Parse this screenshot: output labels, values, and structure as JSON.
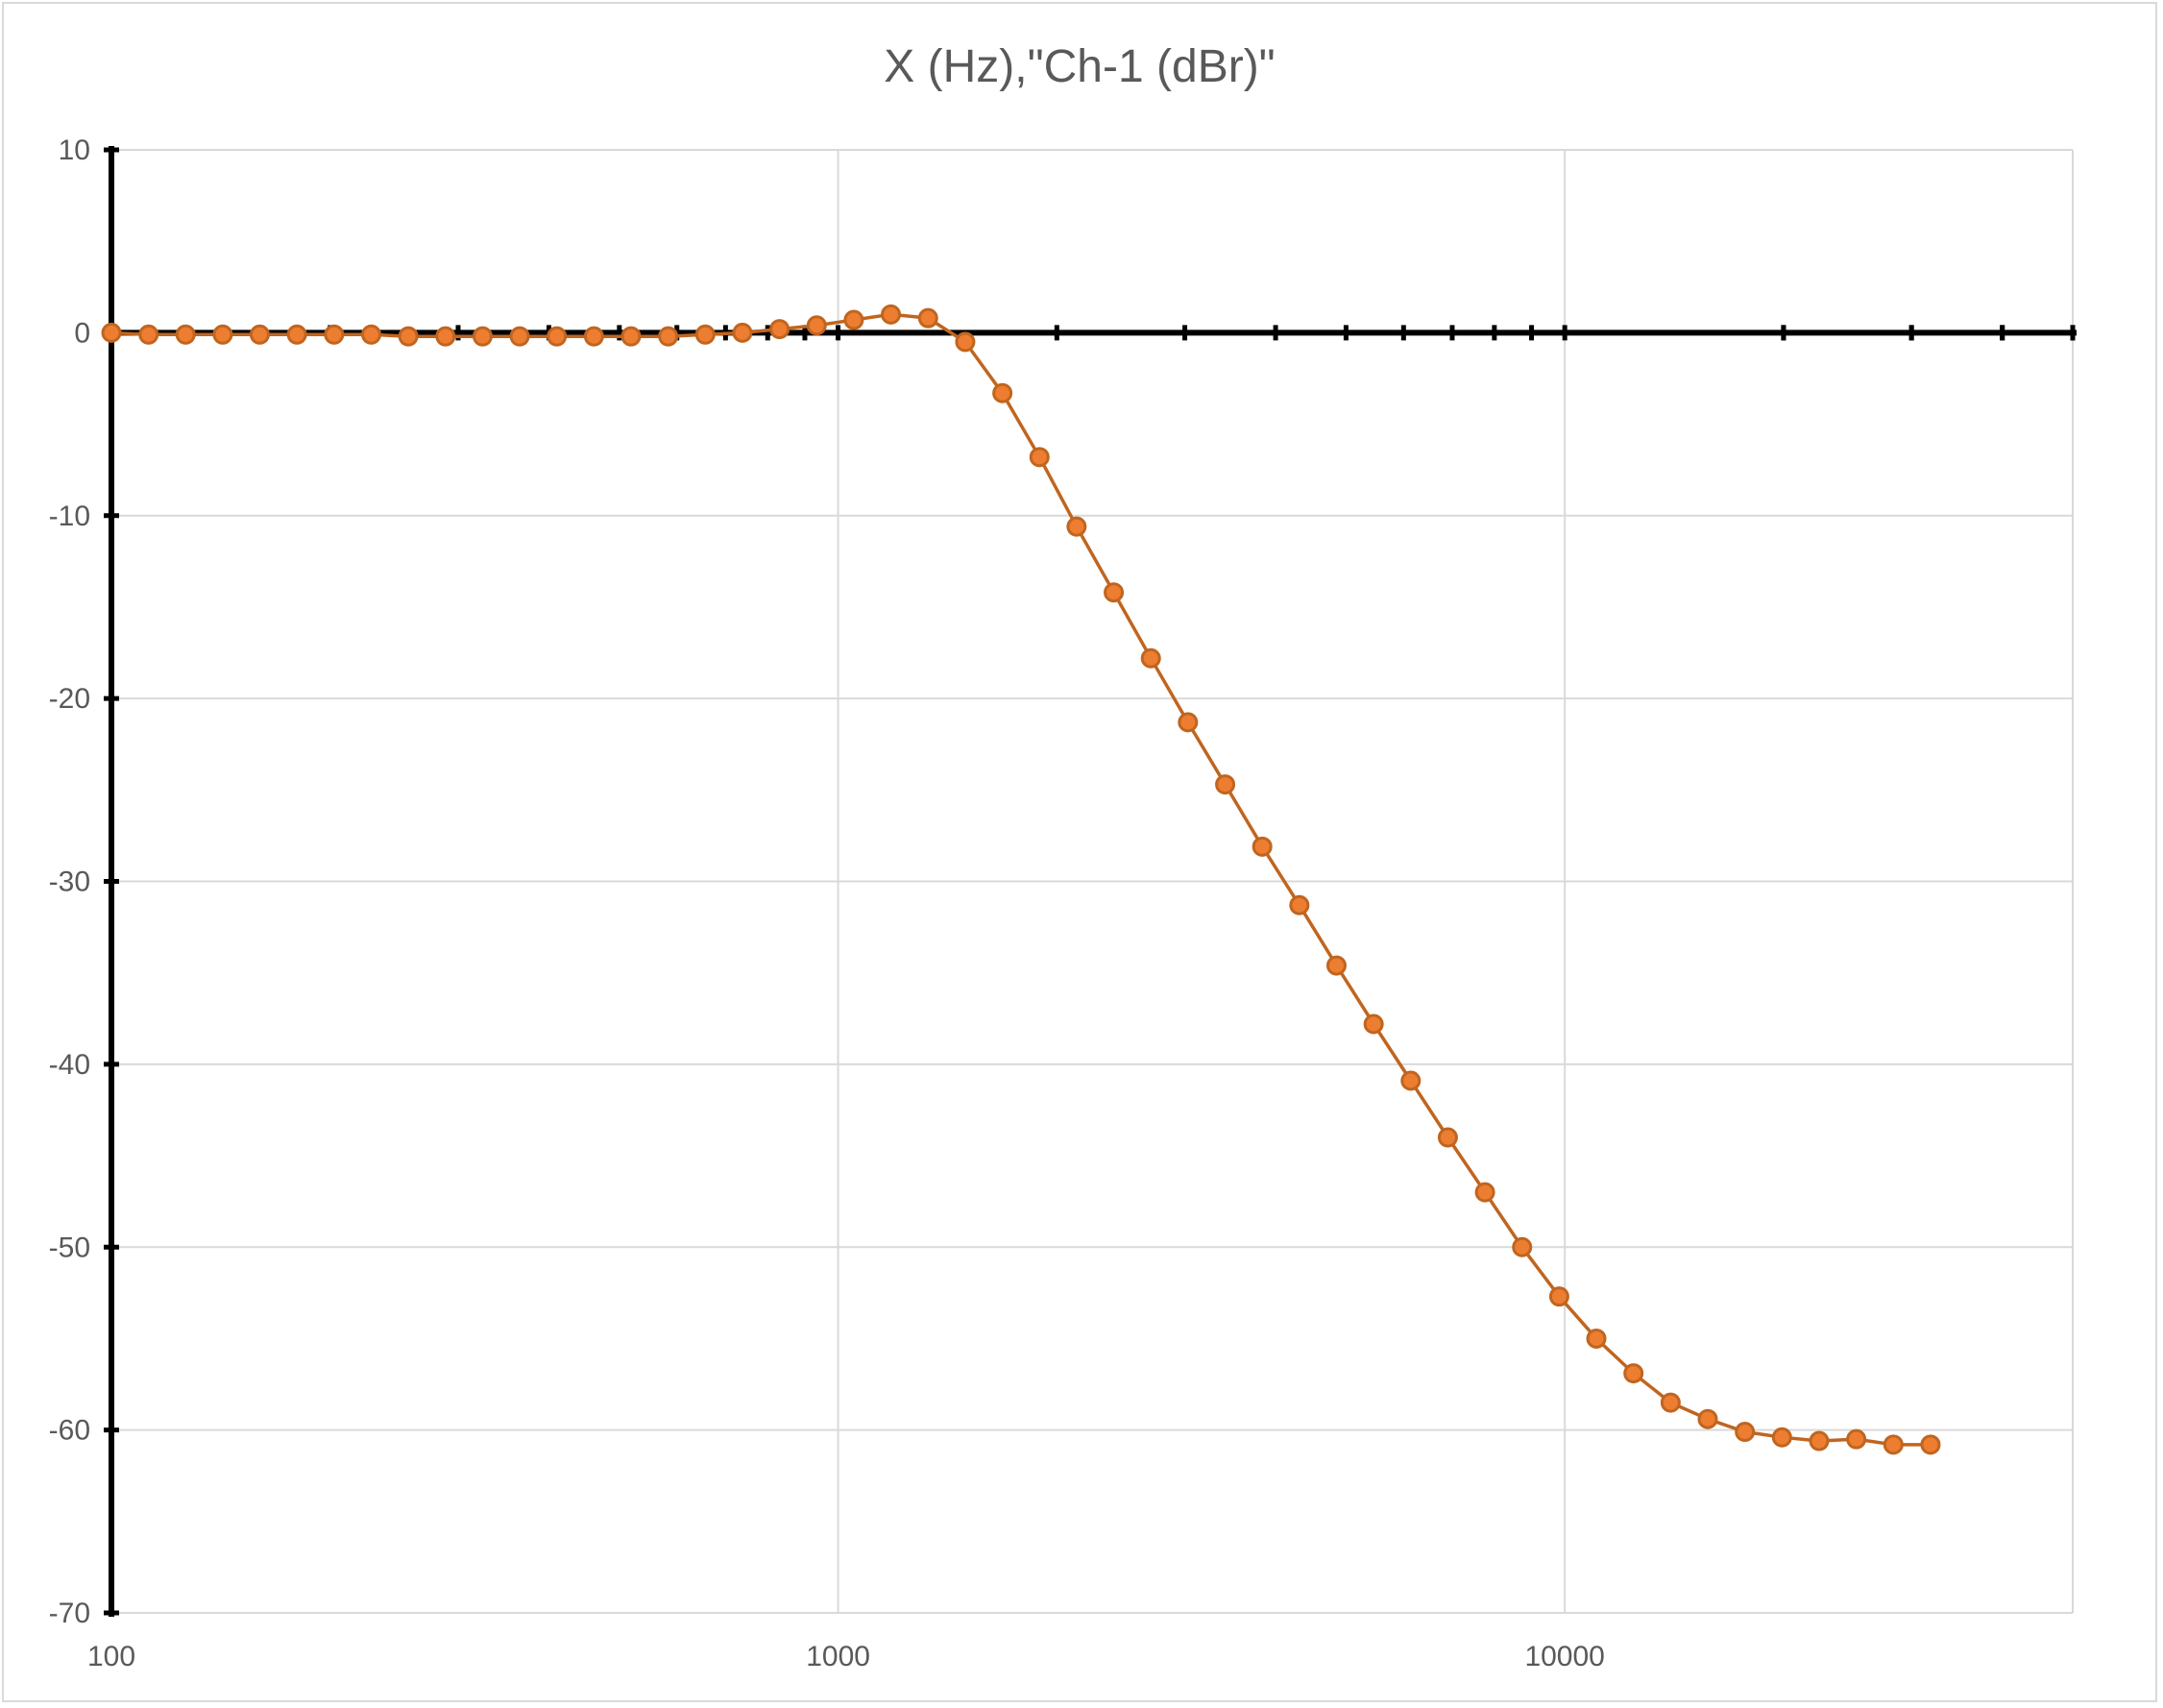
{
  "chart_data": {
    "type": "scatter",
    "title": "X (Hz),\"Ch-1 (dBr)\"",
    "xlabel": "",
    "ylabel": "",
    "x_scale": "log",
    "xlim": [
      100,
      50000
    ],
    "ylim": [
      -70,
      10
    ],
    "grid": true,
    "legend": "none",
    "x_ticks": [
      "100",
      "1000",
      "10000"
    ],
    "y_ticks": [
      "10",
      "0",
      "-10",
      "-20",
      "-30",
      "-40",
      "-50",
      "-60",
      "-70"
    ],
    "series": [
      {
        "color": "#c0651f",
        "marker_fill": "#ed7d31",
        "points": [
          [
            100,
            0.0
          ],
          [
            112.5,
            -0.1
          ],
          [
            126.5,
            -0.1
          ],
          [
            142.3,
            -0.1
          ],
          [
            160.0,
            -0.1
          ],
          [
            180.0,
            -0.1
          ],
          [
            202.5,
            -0.1
          ],
          [
            227.8,
            -0.1
          ],
          [
            256.2,
            -0.2
          ],
          [
            288.2,
            -0.2
          ],
          [
            324.2,
            -0.2
          ],
          [
            364.6,
            -0.2
          ],
          [
            410.1,
            -0.2
          ],
          [
            461.3,
            -0.2
          ],
          [
            518.9,
            -0.2
          ],
          [
            583.7,
            -0.2
          ],
          [
            656.5,
            -0.1
          ],
          [
            738.5,
            0.0
          ],
          [
            830.7,
            0.2
          ],
          [
            934.4,
            0.4
          ],
          [
            1051,
            0.7
          ],
          [
            1182,
            1.0
          ],
          [
            1330,
            0.8
          ],
          [
            1496,
            -0.5
          ],
          [
            1683,
            -3.3
          ],
          [
            1893,
            -6.8
          ],
          [
            2129,
            -10.6
          ],
          [
            2395,
            -14.2
          ],
          [
            2694,
            -17.8
          ],
          [
            3030,
            -21.3
          ],
          [
            3409,
            -24.7
          ],
          [
            3834,
            -28.1
          ],
          [
            4313,
            -31.3
          ],
          [
            4851,
            -34.6
          ],
          [
            5457,
            -37.8
          ],
          [
            6138,
            -40.9
          ],
          [
            6904,
            -44.0
          ],
          [
            7766,
            -47.0
          ],
          [
            8735,
            -50.0
          ],
          [
            9826,
            -52.7
          ],
          [
            11052,
            -55.0
          ],
          [
            12432,
            -56.9
          ],
          [
            13984,
            -58.5
          ],
          [
            15730,
            -59.4
          ],
          [
            17694,
            -60.1
          ],
          [
            19903,
            -60.4
          ],
          [
            22388,
            -60.6
          ],
          [
            25183,
            -60.5
          ],
          [
            28327,
            -60.8
          ],
          [
            31863,
            -60.8
          ]
        ]
      }
    ]
  }
}
